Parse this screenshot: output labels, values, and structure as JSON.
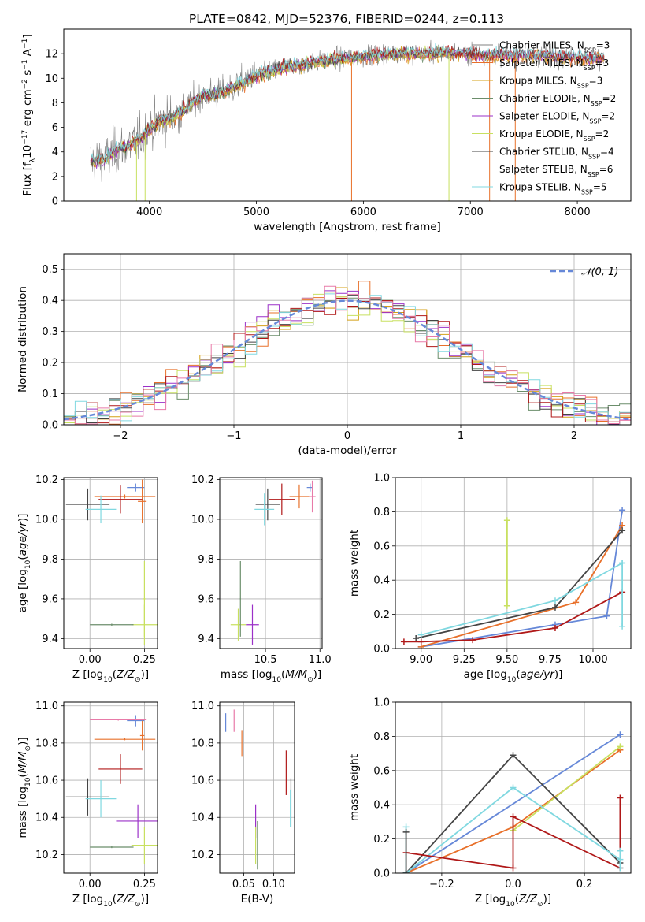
{
  "title": "PLATE=0842, MJD=52376, FIBERID=0244, z=0.113",
  "colors": {
    "chabrier_miles": "#808080",
    "salpeter_miles": "#e8702a",
    "kroupa_miles": "#d4a017",
    "chabrier_elodie": "#6b8e6b",
    "salpeter_elodie": "#9b30c8",
    "kroupa_elodie": "#c8e060",
    "chabrier_stelib": "#444444",
    "salpeter_stelib": "#b01818",
    "kroupa_stelib": "#80d8e0",
    "blue": "#6688d8",
    "pink": "#e87aa8",
    "grid": "#b0b0b0"
  },
  "chart_data": [
    {
      "type": "line",
      "id": "spectrum",
      "xlabel": "wavelength [Angstrom, rest frame]",
      "ylabel": "Flux [f_λ10^-17 erg cm^-2 s^-1 A^-1]",
      "xlim": [
        3200,
        8500
      ],
      "ylim": [
        0,
        14
      ],
      "xticks": [
        "4000",
        "5000",
        "6000",
        "7000",
        "8000"
      ],
      "yticks": [
        "0",
        "2",
        "4",
        "6",
        "8",
        "10",
        "12"
      ],
      "legend_position": "right",
      "legend": [
        {
          "label": "Chabrier MILES, N_SSP=3",
          "color": "#808080"
        },
        {
          "label": "Salpeter MILES, N_SSP=3",
          "color": "#e8702a"
        },
        {
          "label": "Kroupa MILES, N_SSP=3",
          "color": "#d4a017"
        },
        {
          "label": "Chabrier ELODIE, N_SSP=2",
          "color": "#6b8e6b"
        },
        {
          "label": "Salpeter ELODIE, N_SSP=2",
          "color": "#9b30c8"
        },
        {
          "label": "Kroupa ELODIE, N_SSP=2",
          "color": "#c8e060"
        },
        {
          "label": "Chabrier STELIB, N_SSP=4",
          "color": "#444444"
        },
        {
          "label": "Salpeter STELIB, N_SSP=6",
          "color": "#b01818"
        },
        {
          "label": "Kroupa STELIB, N_SSP=5",
          "color": "#80d8e0"
        }
      ],
      "continuum": {
        "x": [
          3450,
          3600,
          3700,
          3800,
          3900,
          4000,
          4100,
          4200,
          4300,
          4400,
          4500,
          4600,
          4700,
          4800,
          4900,
          5000,
          5200,
          5400,
          5600,
          5800,
          6000,
          6200,
          6400,
          6600,
          6800,
          7000,
          7200,
          7500,
          7800,
          8100,
          8250
        ],
        "y": [
          3.2,
          3.5,
          4.2,
          4.5,
          5.0,
          5.8,
          6.5,
          6.8,
          7.3,
          8.0,
          8.6,
          8.7,
          8.9,
          9.3,
          9.8,
          10.2,
          10.8,
          11.1,
          11.4,
          11.6,
          11.8,
          12.0,
          12.0,
          12.0,
          12.1,
          12.0,
          11.9,
          11.9,
          11.8,
          11.7,
          11.7
        ]
      }
    },
    {
      "type": "line",
      "id": "residual_hist",
      "xlabel": "(data-model)/error",
      "ylabel": "Normed distribution",
      "xlim": [
        -2.5,
        2.5
      ],
      "ylim": [
        0,
        0.55
      ],
      "xticks": [
        "−2",
        "−1",
        "0",
        "1",
        "2"
      ],
      "yticks": [
        "0.0",
        "0.1",
        "0.2",
        "0.3",
        "0.4",
        "0.5"
      ],
      "legend": [
        {
          "label": "𝒩(0, 1)",
          "color": "#6688d8"
        }
      ],
      "legend_position": "top-right",
      "reference_curve": "gaussian mean 0 sigma 1",
      "bin_width": 0.1
    },
    {
      "type": "scatter",
      "id": "age_vs_Z",
      "xlabel": "Z [log10(Z/Z⊙)]",
      "ylabel": "age [log10(age/yr)]",
      "xlim": [
        -0.12,
        0.31
      ],
      "ylim": [
        9.35,
        10.21
      ],
      "xticks": [
        "0.00",
        "0.25"
      ],
      "yticks": [
        "9.4",
        "9.6",
        "9.8",
        "10.0",
        "10.2"
      ],
      "points": [
        {
          "x": 0.21,
          "y": 10.16,
          "xerr": 0.04,
          "yerr": 0.02,
          "color": "#6688d8"
        },
        {
          "x": 0.16,
          "y": 10.115,
          "xerr": 0.14,
          "yerr": 0.01,
          "color": "#e8702a"
        },
        {
          "x": 0.24,
          "y": 10.09,
          "xerr": 0.02,
          "yerr": 0.11,
          "color": "#e8702a"
        },
        {
          "x": 0.14,
          "y": 10.1,
          "xerr": 0.1,
          "yerr": 0.07,
          "color": "#b01818"
        },
        {
          "x": -0.01,
          "y": 10.075,
          "xerr": 0.1,
          "yerr": 0.08,
          "color": "#444444"
        },
        {
          "x": 0.05,
          "y": 10.05,
          "xerr": 0.07,
          "yerr": 0.07,
          "color": "#80d8e0"
        },
        {
          "x": 0.25,
          "y": 9.47,
          "xerr": 0.06,
          "yerr": 0.1,
          "color": "#c8e060"
        },
        {
          "x": 0.25,
          "y": 9.6,
          "xerr": 0.005,
          "yerr": 0.19,
          "color": "#c8e060"
        },
        {
          "x": 0.1,
          "y": 9.47,
          "xerr": 0.1,
          "yerr": 0.005,
          "color": "#6b8e6b"
        }
      ]
    },
    {
      "type": "scatter",
      "id": "age_vs_mass",
      "xlabel": "mass [log10(M/M⊙)]",
      "ylabel": "",
      "xlim": [
        10.08,
        11.02
      ],
      "ylim": [
        9.35,
        10.21
      ],
      "xticks": [
        "10.5",
        "11.0"
      ],
      "yticks": [
        "9.4",
        "9.6",
        "9.8",
        "10.0",
        "10.2"
      ],
      "points": [
        {
          "x": 10.91,
          "y": 10.16,
          "xerr": 0.03,
          "yerr": 0.02,
          "color": "#6688d8"
        },
        {
          "x": 10.93,
          "y": 10.115,
          "xerr": 0.03,
          "yerr": 0.08,
          "color": "#e87aa8"
        },
        {
          "x": 10.81,
          "y": 10.115,
          "xerr": 0.09,
          "yerr": 0.06,
          "color": "#e8702a"
        },
        {
          "x": 10.65,
          "y": 10.1,
          "xerr": 0.12,
          "yerr": 0.08,
          "color": "#b01818"
        },
        {
          "x": 10.52,
          "y": 10.075,
          "xerr": 0.11,
          "yerr": 0.08,
          "color": "#444444"
        },
        {
          "x": 10.49,
          "y": 10.05,
          "xerr": 0.09,
          "yerr": 0.08,
          "color": "#80d8e0"
        },
        {
          "x": 10.38,
          "y": 9.47,
          "xerr": 0.06,
          "yerr": 0.1,
          "color": "#9b30c8"
        },
        {
          "x": 10.25,
          "y": 9.47,
          "xerr": 0.07,
          "yerr": 0.08,
          "color": "#c8e060"
        },
        {
          "x": 10.27,
          "y": 9.6,
          "xerr": 0.005,
          "yerr": 0.19,
          "color": "#6b8e6b"
        }
      ]
    },
    {
      "type": "line",
      "id": "massweight_vs_age",
      "xlabel": "age [log10(age/yr)]",
      "ylabel": "mass weight",
      "xlim": [
        8.85,
        10.22
      ],
      "ylim": [
        0,
        1
      ],
      "xticks": [
        "9.00",
        "9.25",
        "9.50",
        "9.75",
        "10.00"
      ],
      "yticks": [
        "0.0",
        "0.2",
        "0.4",
        "0.6",
        "0.8",
        "1.0"
      ],
      "series": [
        {
          "color": "#6688d8",
          "x": [
            9.0,
            9.78,
            10.08,
            10.17
          ],
          "y": [
            0.01,
            0.14,
            0.19,
            0.81
          ]
        },
        {
          "color": "#e8702a",
          "x": [
            9.0,
            9.9,
            10.17
          ],
          "y": [
            0.01,
            0.27,
            0.72
          ]
        },
        {
          "color": "#444444",
          "x": [
            8.97,
            9.78,
            10.17
          ],
          "y": [
            0.06,
            0.24,
            0.69
          ]
        },
        {
          "color": "#80d8e0",
          "x": [
            9.0,
            9.78,
            10.17
          ],
          "y": [
            0.08,
            0.28,
            0.5
          ]
        },
        {
          "color": "#b01818",
          "x": [
            8.9,
            9.0,
            9.3,
            9.78,
            10.17
          ],
          "y": [
            0.04,
            0.04,
            0.05,
            0.12,
            0.33
          ]
        },
        {
          "color": "#c8e060",
          "x": [
            9.5,
            9.5
          ],
          "y": [
            0.25,
            0.75
          ]
        },
        {
          "color": "#80d8e0",
          "x": [
            10.17,
            10.17
          ],
          "y": [
            0.13,
            0.5
          ]
        }
      ]
    },
    {
      "type": "scatter",
      "id": "mass_vs_Z",
      "xlabel": "Z [log10(Z/Z⊙)]",
      "ylabel": "mass [log10(M/M⊙)]",
      "xlim": [
        -0.12,
        0.31
      ],
      "ylim": [
        10.1,
        11.02
      ],
      "xticks": [
        "0.00",
        "0.25"
      ],
      "yticks": [
        "10.2",
        "10.4",
        "10.6",
        "10.8",
        "11.0"
      ],
      "points": [
        {
          "x": 0.21,
          "y": 10.92,
          "xerr": 0.04,
          "yerr": 0.03,
          "color": "#6688d8"
        },
        {
          "x": 0.13,
          "y": 10.925,
          "xerr": 0.13,
          "yerr": 0.005,
          "color": "#e87aa8"
        },
        {
          "x": 0.16,
          "y": 10.82,
          "xerr": 0.14,
          "yerr": 0.005,
          "color": "#e8702a"
        },
        {
          "x": 0.24,
          "y": 10.84,
          "xerr": 0.01,
          "yerr": 0.08,
          "color": "#e8702a"
        },
        {
          "x": 0.14,
          "y": 10.66,
          "xerr": 0.1,
          "yerr": 0.08,
          "color": "#b01818"
        },
        {
          "x": -0.01,
          "y": 10.51,
          "xerr": 0.1,
          "yerr": 0.1,
          "color": "#444444"
        },
        {
          "x": 0.05,
          "y": 10.5,
          "xerr": 0.07,
          "yerr": 0.1,
          "color": "#80d8e0"
        },
        {
          "x": 0.22,
          "y": 10.38,
          "xerr": 0.1,
          "yerr": 0.09,
          "color": "#9b30c8"
        },
        {
          "x": 0.25,
          "y": 10.25,
          "xerr": 0.06,
          "yerr": 0.1,
          "color": "#c8e060"
        },
        {
          "x": 0.1,
          "y": 10.24,
          "xerr": 0.1,
          "yerr": 0.005,
          "color": "#6b8e6b"
        }
      ]
    },
    {
      "type": "scatter",
      "id": "mass_vs_ebv",
      "xlabel": "E(B-V)",
      "ylabel": "",
      "xlim": [
        0.01,
        0.135
      ],
      "ylim": [
        10.1,
        11.02
      ],
      "xticks": [
        "0.05",
        "0.10"
      ],
      "yticks": [
        "10.2",
        "10.4",
        "10.6",
        "10.8",
        "11.0"
      ],
      "points": [
        {
          "x": 0.02,
          "y": 10.91,
          "yerr": 0.05,
          "color": "#6688d8"
        },
        {
          "x": 0.034,
          "y": 10.92,
          "yerr": 0.06,
          "color": "#e87aa8"
        },
        {
          "x": 0.047,
          "y": 10.8,
          "yerr": 0.07,
          "color": "#e8702a"
        },
        {
          "x": 0.121,
          "y": 10.64,
          "yerr": 0.12,
          "color": "#b01818"
        },
        {
          "x": 0.129,
          "y": 10.48,
          "yerr": 0.13,
          "color": "#444444"
        },
        {
          "x": 0.128,
          "y": 10.45,
          "yerr": 0.1,
          "color": "#80d8e0"
        },
        {
          "x": 0.07,
          "y": 10.38,
          "yerr": 0.09,
          "color": "#9b30c8"
        },
        {
          "x": 0.07,
          "y": 10.25,
          "yerr": 0.1,
          "color": "#c8e060"
        },
        {
          "x": 0.073,
          "y": 10.25,
          "yerr": 0.13,
          "color": "#6b8e6b"
        }
      ]
    },
    {
      "type": "line",
      "id": "massweight_vs_Z",
      "xlabel": "Z [log10(Z/Z⊙)]",
      "ylabel": "mass weight",
      "xlim": [
        -0.33,
        0.33
      ],
      "ylim": [
        0,
        1
      ],
      "xticks": [
        "−0.2",
        "0.0",
        "0.2"
      ],
      "yticks": [
        "0.0",
        "0.2",
        "0.4",
        "0.6",
        "0.8",
        "1.0"
      ],
      "series": [
        {
          "color": "#6688d8",
          "x": [
            -0.3,
            0.3
          ],
          "y": [
            0.0,
            0.81
          ]
        },
        {
          "color": "#e8702a",
          "x": [
            -0.3,
            0.0,
            0.3
          ],
          "y": [
            0.0,
            0.27,
            0.72
          ]
        },
        {
          "color": "#c8e060",
          "x": [
            0.0,
            0.3
          ],
          "y": [
            0.25,
            0.74
          ]
        },
        {
          "color": "#444444",
          "x": [
            -0.3,
            0.0,
            0.3
          ],
          "y": [
            0.0,
            0.69,
            0.06
          ]
        },
        {
          "color": "#80d8e0",
          "x": [
            -0.3,
            0.0,
            0.3
          ],
          "y": [
            0.0,
            0.5,
            0.08
          ]
        },
        {
          "color": "#b01818",
          "x": [
            -0.3,
            0.0,
            0.0,
            0.3,
            0.3
          ],
          "y": [
            0.12,
            0.03,
            0.33,
            0.03,
            0.44
          ]
        },
        {
          "color": "#80d8e0",
          "x": [
            -0.3,
            -0.3
          ],
          "y": [
            0.0,
            0.27
          ]
        },
        {
          "color": "#444444",
          "x": [
            -0.3,
            -0.3
          ],
          "y": [
            0.0,
            0.24
          ]
        },
        {
          "color": "#80d8e0",
          "x": [
            0.3,
            0.3
          ],
          "y": [
            0.03,
            0.13
          ]
        }
      ]
    }
  ]
}
